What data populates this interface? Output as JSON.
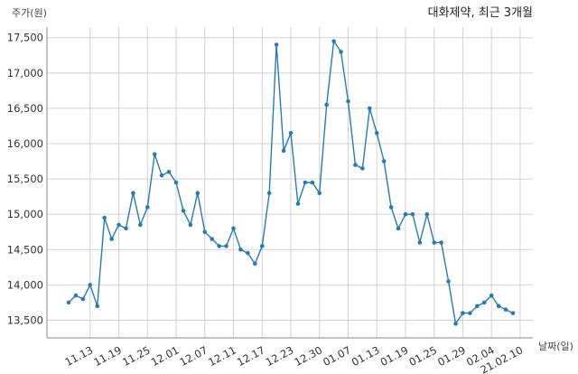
{
  "chart_data": {
    "type": "line",
    "title": "대화제약, 최근 3개월",
    "ylabel": "주가(원)",
    "xlabel": "날짜(일)",
    "ylim": [
      13250,
      17650
    ],
    "yticks": [
      13500,
      14000,
      14500,
      15000,
      15500,
      16000,
      16500,
      17000,
      17500
    ],
    "ytick_labels": [
      "13,500",
      "14,000",
      "14,500",
      "15,000",
      "15,500",
      "16,000",
      "16,500",
      "17,000",
      "17,500"
    ],
    "xtick_labels": [
      "11.13",
      "11.19",
      "11.25",
      "12.01",
      "12.07",
      "12.11",
      "12.17",
      "12.23",
      "12.30",
      "01.07",
      "01.13",
      "01.19",
      "01.25",
      "01.29",
      "02.04",
      "21.02.10"
    ],
    "xtick_index": [
      3,
      7,
      11,
      15,
      19,
      23,
      27,
      31,
      35,
      39,
      43,
      47,
      51,
      55,
      59,
      63
    ],
    "grid": true,
    "color": "#2a7ab0",
    "series": [
      {
        "values": [
          13750,
          13850,
          13800,
          14000,
          13700,
          14950,
          14650,
          14850,
          14800,
          15300,
          14850,
          15100,
          15850,
          15550,
          15600,
          15450,
          15050,
          14850,
          15300,
          14750,
          14650,
          14550,
          14550,
          14800,
          14500,
          14450,
          14300,
          14550,
          15300,
          17400,
          15900,
          16150,
          15150,
          15450,
          15450,
          15300,
          16550,
          17450,
          17300,
          16600,
          15700,
          15650,
          16500,
          16150,
          15750,
          15100,
          14800,
          15000,
          15000,
          14600,
          15000,
          14600,
          14600,
          14050,
          13450,
          13600,
          13600,
          13700,
          13750,
          13850,
          13700,
          13650,
          13600
        ]
      }
    ]
  }
}
